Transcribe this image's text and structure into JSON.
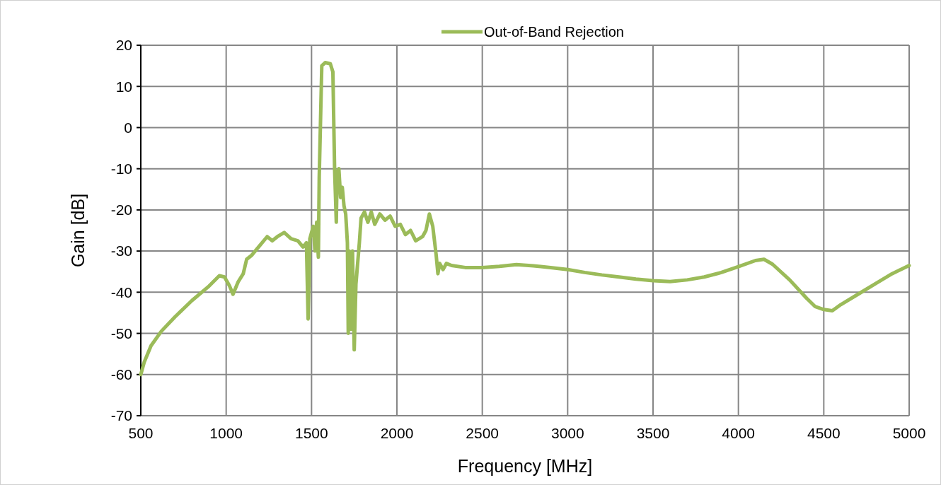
{
  "chart_data": {
    "type": "line",
    "xlabel": "Frequency [MHz]",
    "ylabel": "Gain [dB]",
    "xlim": [
      500,
      5000
    ],
    "ylim": [
      -70,
      20
    ],
    "xticks": [
      500,
      1000,
      1500,
      2000,
      2500,
      3000,
      3500,
      4000,
      4500,
      5000
    ],
    "yticks": [
      -70,
      -60,
      -50,
      -40,
      -30,
      -20,
      -10,
      0,
      10,
      20
    ],
    "grid": true,
    "legend": "top",
    "line_style": "solid",
    "marker": "none",
    "x": [
      500,
      520,
      560,
      620,
      700,
      800,
      900,
      960,
      990,
      1020,
      1040,
      1070,
      1100,
      1120,
      1150,
      1200,
      1240,
      1270,
      1300,
      1340,
      1380,
      1420,
      1450,
      1470,
      1480,
      1490,
      1510,
      1520,
      1530,
      1540,
      1545,
      1560,
      1580,
      1610,
      1625,
      1635,
      1645,
      1650,
      1660,
      1670,
      1680,
      1690,
      1700,
      1710,
      1715,
      1720,
      1730,
      1740,
      1750,
      1760,
      1770,
      1780,
      1790,
      1810,
      1830,
      1850,
      1870,
      1900,
      1930,
      1960,
      1990,
      2020,
      2050,
      2080,
      2110,
      2150,
      2170,
      2190,
      2210,
      2230,
      2240,
      2250,
      2270,
      2290,
      2320,
      2400,
      2500,
      2600,
      2700,
      2800,
      2900,
      3000,
      3100,
      3200,
      3300,
      3400,
      3500,
      3600,
      3700,
      3800,
      3900,
      4000,
      4100,
      4150,
      4200,
      4300,
      4400,
      4450,
      4500,
      4550,
      4600,
      4700,
      4800,
      4900,
      5000
    ],
    "series": [
      {
        "name": "Out-of-Band Rejection",
        "color": "#9bbb59",
        "values": [
          -60,
          -57,
          -53,
          -49.5,
          -46,
          -42,
          -38.5,
          -36,
          -36.3,
          -38.5,
          -40.5,
          -37.5,
          -35.5,
          -32,
          -31,
          -28.5,
          -26.5,
          -27.5,
          -26.5,
          -25.5,
          -27,
          -27.5,
          -29,
          -28,
          -46.5,
          -27,
          -24,
          -30,
          -23,
          -31.5,
          -12,
          15,
          15.8,
          15.5,
          13.5,
          -10,
          -23,
          -11,
          -10,
          -17,
          -14.5,
          -19,
          -21,
          -28,
          -50,
          -30,
          -49,
          -30,
          -54,
          -38,
          -33,
          -28,
          -22,
          -20.5,
          -23,
          -20.5,
          -23.5,
          -21,
          -22.5,
          -21.5,
          -24,
          -23.5,
          -26,
          -25,
          -27.5,
          -26.5,
          -25,
          -21,
          -24,
          -31,
          -35.5,
          -33,
          -34.5,
          -33,
          -33.5,
          -34,
          -34,
          -33.7,
          -33.3,
          -33.6,
          -34,
          -34.5,
          -35.2,
          -35.8,
          -36.3,
          -36.8,
          -37.2,
          -37.4,
          -37,
          -36.3,
          -35.2,
          -33.8,
          -32.3,
          -32,
          -33.2,
          -37,
          -41.5,
          -43.5,
          -44.2,
          -44.5,
          -43,
          -40.5,
          -38,
          -35.5,
          -33.5
        ]
      }
    ]
  }
}
